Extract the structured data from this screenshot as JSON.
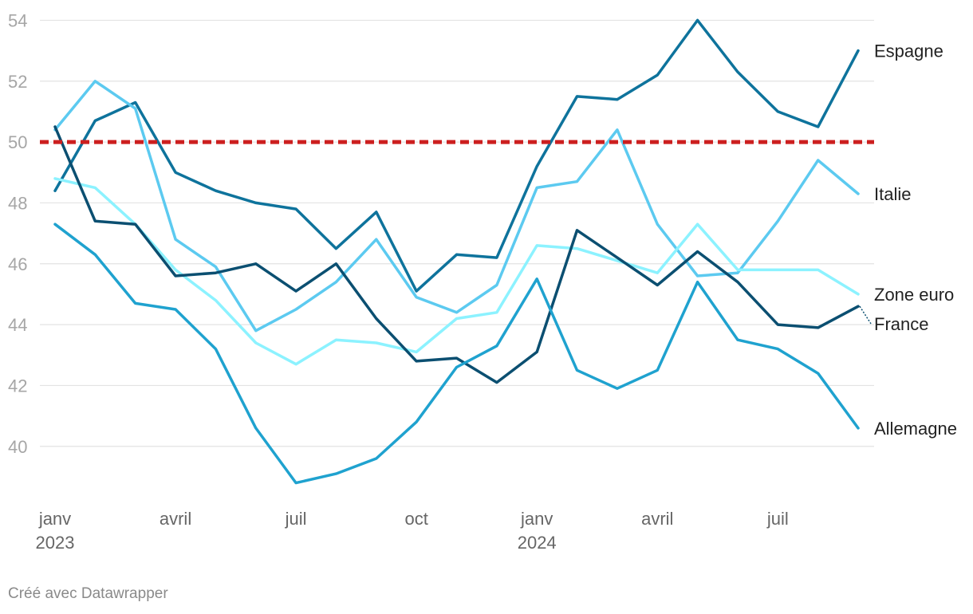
{
  "chart_data": {
    "type": "line",
    "title": "",
    "xlabel": "",
    "ylabel": "",
    "x": [
      "2023-01",
      "2023-02",
      "2023-03",
      "2023-04",
      "2023-05",
      "2023-06",
      "2023-07",
      "2023-08",
      "2023-09",
      "2023-10",
      "2023-11",
      "2023-12",
      "2024-01",
      "2024-02",
      "2024-03",
      "2024-04",
      "2024-05",
      "2024-06",
      "2024-07",
      "2024-08",
      "2024-09"
    ],
    "ylim": [
      38.5,
      54.3
    ],
    "yticks": [
      40,
      42,
      44,
      46,
      48,
      50,
      52,
      54
    ],
    "grid": true,
    "reference_line": {
      "value": 50,
      "color": "#cc1f1f",
      "style": "dashed"
    },
    "x_tick_labels": [
      {
        "x": "2023-01",
        "line1": "janv",
        "line2": "2023"
      },
      {
        "x": "2023-04",
        "line1": "avril",
        "line2": ""
      },
      {
        "x": "2023-07",
        "line1": "juil",
        "line2": ""
      },
      {
        "x": "2023-10",
        "line1": "oct",
        "line2": ""
      },
      {
        "x": "2024-01",
        "line1": "janv",
        "line2": "2024"
      },
      {
        "x": "2024-04",
        "line1": "avril",
        "line2": ""
      },
      {
        "x": "2024-07",
        "line1": "juil",
        "line2": ""
      }
    ],
    "series": [
      {
        "name": "Espagne",
        "color": "#0e739c",
        "values": [
          48.4,
          50.7,
          51.3,
          49.0,
          48.4,
          48.0,
          47.8,
          46.5,
          47.7,
          45.1,
          46.3,
          46.2,
          49.2,
          51.5,
          51.4,
          52.2,
          54.0,
          52.3,
          51.0,
          50.5,
          53.0
        ]
      },
      {
        "name": "Italie",
        "color": "#5ccaf0",
        "values": [
          50.4,
          52.0,
          51.1,
          46.8,
          45.9,
          43.8,
          44.5,
          45.4,
          46.8,
          44.9,
          44.4,
          45.3,
          48.5,
          48.7,
          50.4,
          47.3,
          45.6,
          45.7,
          47.4,
          49.4,
          48.3
        ]
      },
      {
        "name": "Zone euro",
        "color": "#8cf2ff",
        "values": [
          48.8,
          48.5,
          47.3,
          45.8,
          44.8,
          43.4,
          42.7,
          43.5,
          43.4,
          43.1,
          44.2,
          44.4,
          46.6,
          46.5,
          46.1,
          45.7,
          47.3,
          45.8,
          45.8,
          45.8,
          45.0
        ]
      },
      {
        "name": "France",
        "color": "#0b4f71",
        "values": [
          50.5,
          47.4,
          47.3,
          45.6,
          45.7,
          46.0,
          45.1,
          46.0,
          44.2,
          42.8,
          42.9,
          42.1,
          43.1,
          47.1,
          46.2,
          45.3,
          46.4,
          45.4,
          44.0,
          43.9,
          44.6
        ]
      },
      {
        "name": "Allemagne",
        "color": "#1fa2cf",
        "values": [
          47.3,
          46.3,
          44.7,
          44.5,
          43.2,
          40.6,
          38.8,
          39.1,
          39.6,
          40.8,
          42.6,
          43.3,
          45.5,
          42.5,
          41.9,
          42.5,
          45.4,
          43.5,
          43.2,
          42.4,
          40.6
        ]
      }
    ]
  },
  "credit": "Créé avec Datawrapper"
}
